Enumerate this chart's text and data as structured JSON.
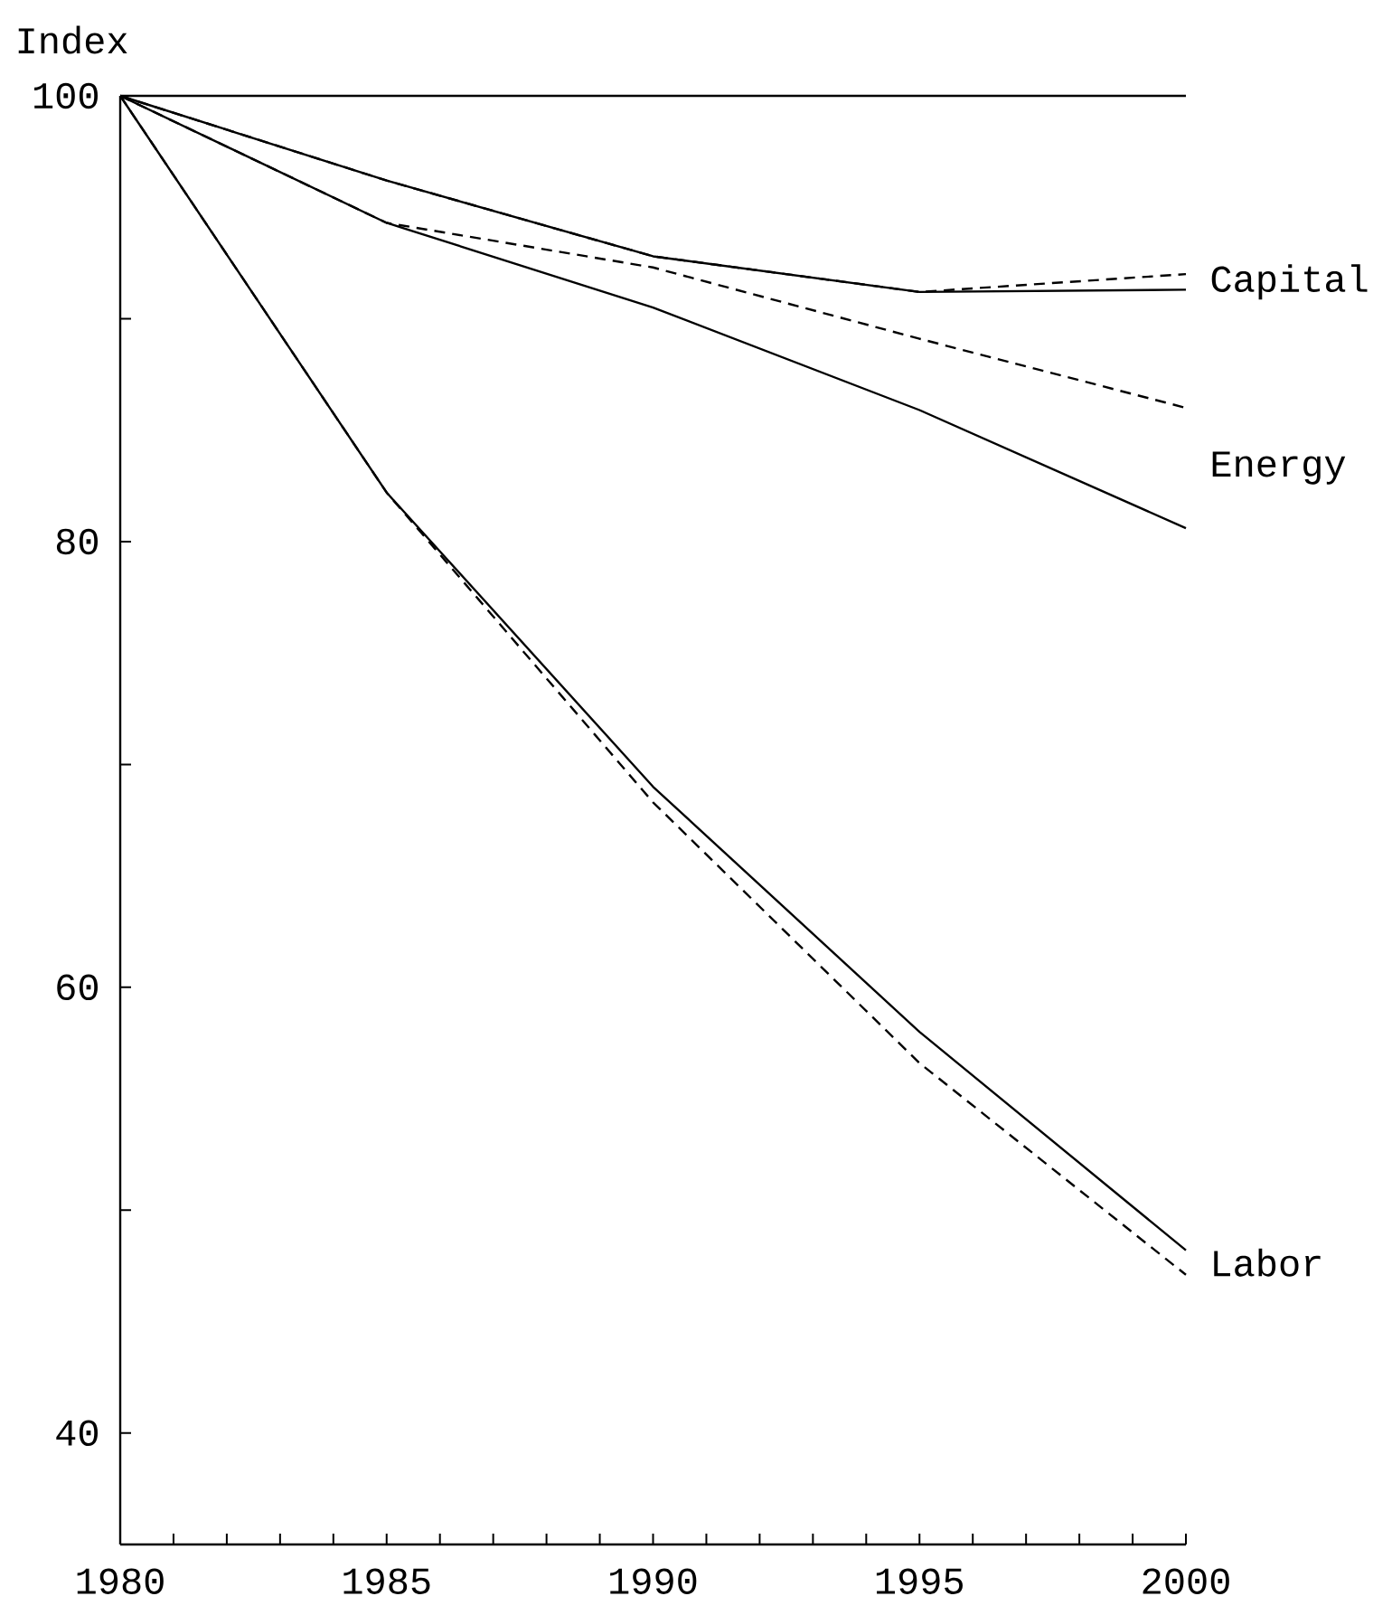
{
  "chart_data": {
    "type": "line",
    "ylabel": "Index",
    "x": [
      1980,
      1985,
      1990,
      1995,
      2000
    ],
    "series": [
      {
        "name": "Capital",
        "color": "#000000",
        "line_style": "solid",
        "values": [
          100,
          96.2,
          92.8,
          91.2,
          91.3
        ]
      },
      {
        "color": "#000000",
        "line_style": "dashed",
        "values": [
          100,
          96.2,
          92.8,
          91.2,
          92.0
        ]
      },
      {
        "name": "Energy",
        "color": "#000000",
        "line_style": "solid",
        "values": [
          100,
          94.3,
          90.5,
          85.9,
          80.6
        ]
      },
      {
        "color": "#000000",
        "line_style": "dashed",
        "values": [
          100,
          94.3,
          92.3,
          89.1,
          86.0
        ]
      },
      {
        "name": "Labor",
        "color": "#000000",
        "line_style": "solid",
        "values": [
          100,
          82.2,
          69.0,
          58.0,
          48.2
        ]
      },
      {
        "color": "#000000",
        "line_style": "dashed",
        "values": [
          100,
          82.2,
          68.3,
          56.6,
          47.1
        ]
      }
    ],
    "xlim": [
      1980,
      2000
    ],
    "xticks": [
      1980,
      {
        "value": 1981,
        "label": null
      },
      {
        "value": 1982,
        "label": null
      },
      {
        "value": 1983,
        "label": null
      },
      {
        "value": 1984,
        "label": null
      },
      1985,
      {
        "value": 1986,
        "label": null
      },
      {
        "value": 1987,
        "label": null
      },
      {
        "value": 1988,
        "label": null
      },
      {
        "value": 1989,
        "label": null
      },
      1990,
      {
        "value": 1991,
        "label": null
      },
      {
        "value": 1992,
        "label": null
      },
      {
        "value": 1993,
        "label": null
      },
      {
        "value": 1994,
        "label": null
      },
      1995,
      {
        "value": 1996,
        "label": null
      },
      {
        "value": 1997,
        "label": null
      },
      {
        "value": 1998,
        "label": null
      },
      {
        "value": 1999,
        "label": null
      },
      2000
    ],
    "ylim": [
      35,
      100
    ],
    "yticks": [
      40,
      {
        "value": 50,
        "label": null
      },
      60,
      {
        "value": 70,
        "label": null
      },
      80,
      {
        "value": 90,
        "label": null
      },
      100
    ],
    "ref_lines": [
      {
        "axis": "y",
        "value": 100,
        "color": "#000000"
      }
    ]
  }
}
